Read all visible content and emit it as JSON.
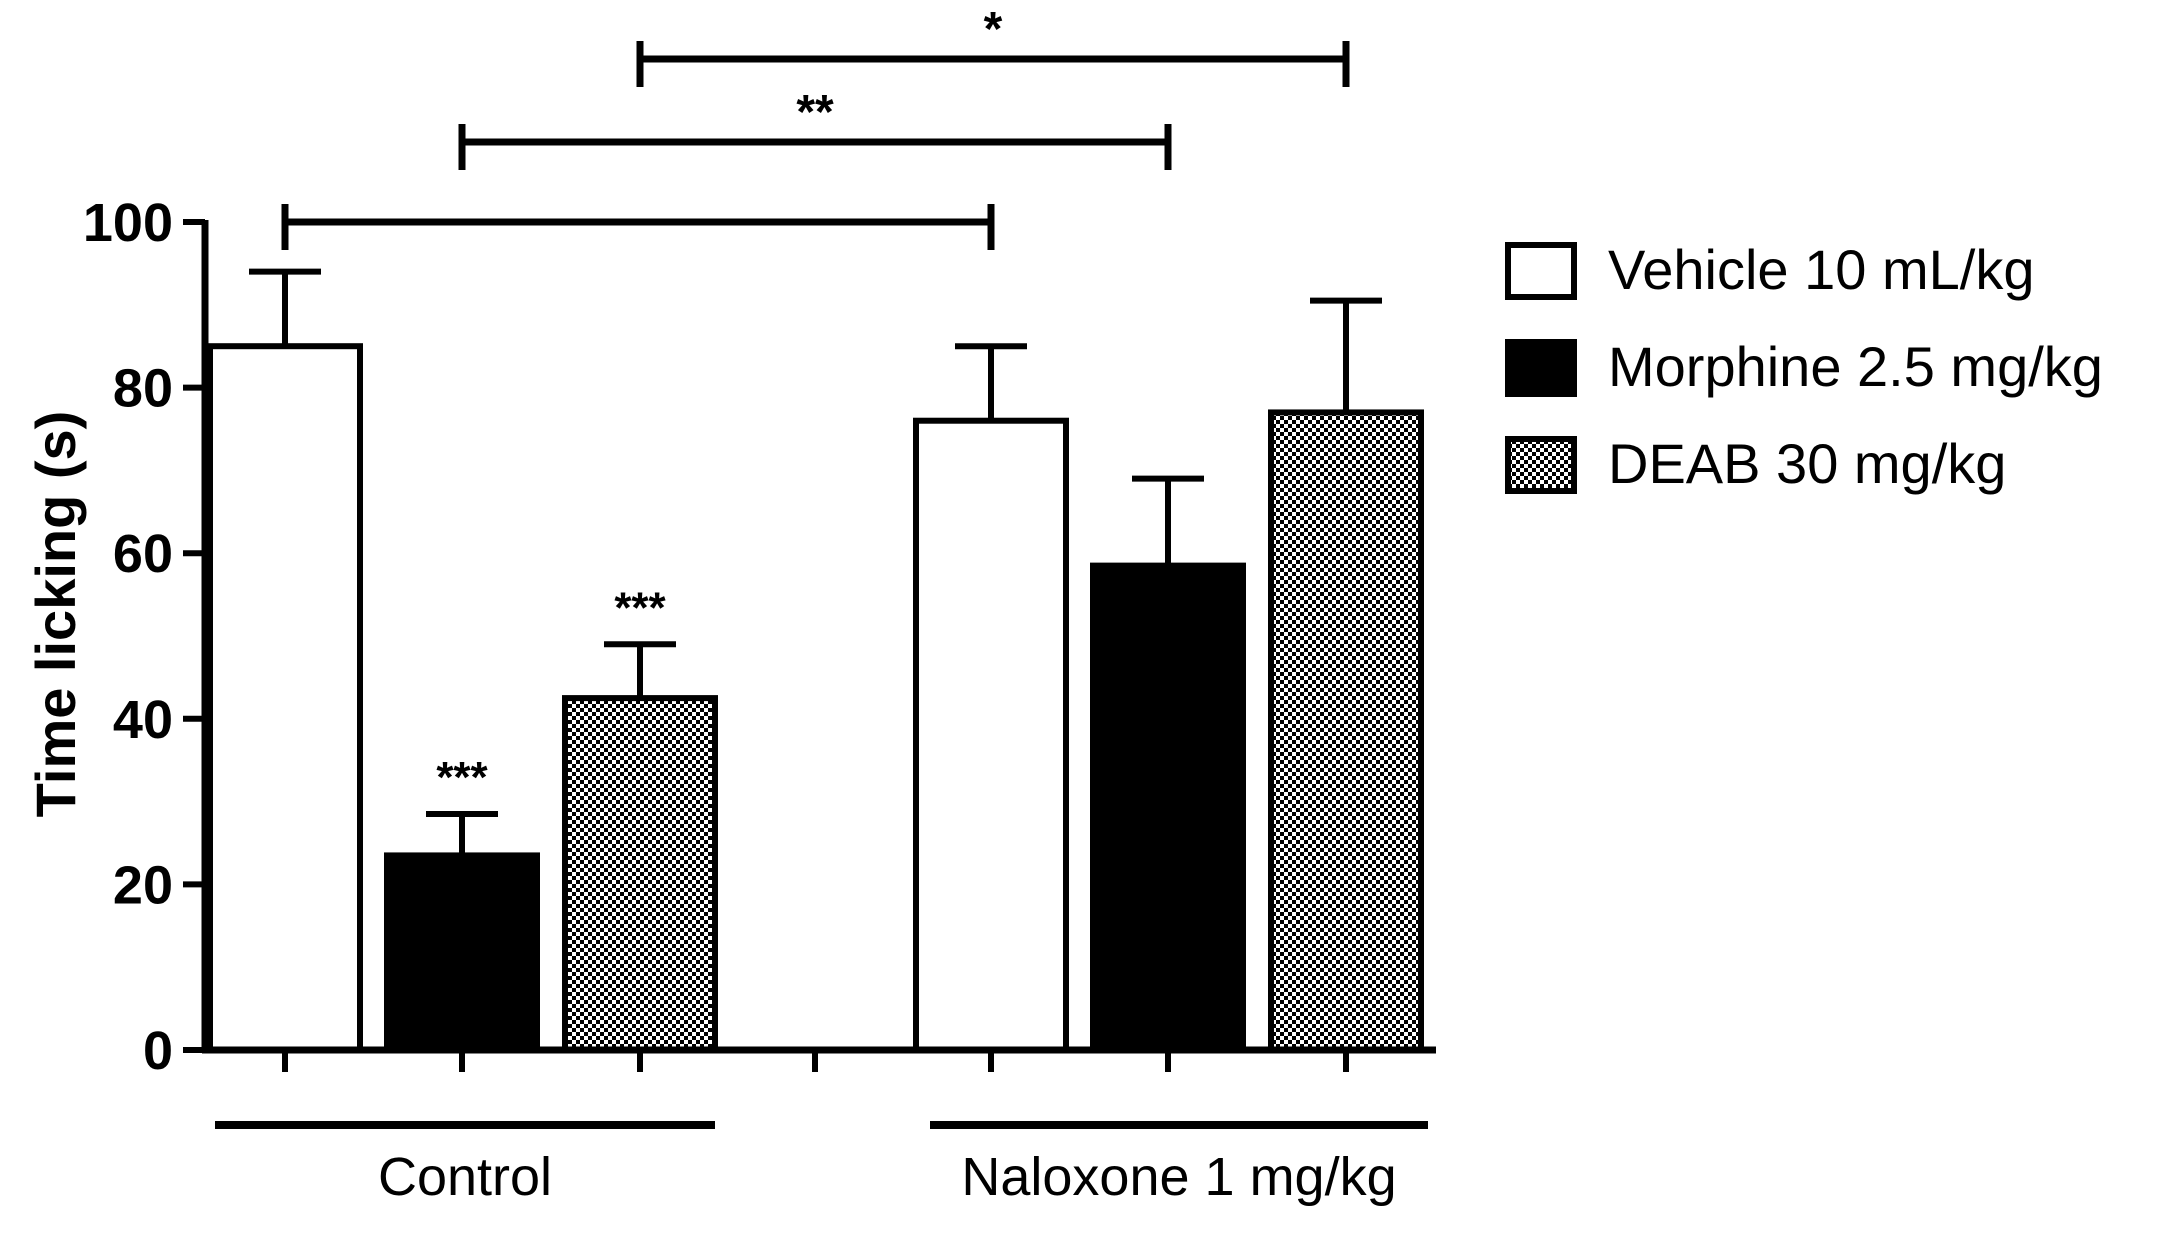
{
  "chart_data": {
    "type": "bar",
    "ylabel": "Time licking (s)",
    "ylim": [
      0,
      100
    ],
    "yticks": [
      0,
      20,
      40,
      60,
      80,
      100
    ],
    "groups": [
      "Control",
      "Naloxone 1 mg/kg"
    ],
    "series": [
      {
        "name": "Vehicle 10 mL/kg",
        "fill": "white",
        "values": [
          85,
          76
        ],
        "errors": [
          9,
          9
        ],
        "annotations": [
          "",
          ""
        ]
      },
      {
        "name": "Morphine 2.5 mg/kg",
        "fill": "black",
        "values": [
          23.5,
          58.5
        ],
        "errors": [
          5,
          10.5
        ],
        "annotations": [
          "***",
          ""
        ]
      },
      {
        "name": "DEAB 30 mg/kg",
        "fill": "checkered",
        "values": [
          42.5,
          77
        ],
        "errors": [
          6.5,
          13.5
        ],
        "annotations": [
          "***",
          ""
        ]
      }
    ],
    "significance_brackets": [
      {
        "from": "Control / Vehicle 10 mL/kg",
        "to": "Naloxone 1 mg/kg / Vehicle 10 mL/kg",
        "label": ""
      },
      {
        "from": "Control / Morphine 2.5 mg/kg",
        "to": "Naloxone 1 mg/kg / Morphine 2.5 mg/kg",
        "label": "**"
      },
      {
        "from": "Control / DEAB 30 mg/kg",
        "to": "Naloxone 1 mg/kg / DEAB 30 mg/kg",
        "label": "*"
      }
    ],
    "legend_position": "right"
  },
  "colors": {
    "ink": "#000000",
    "background": "#ffffff"
  }
}
